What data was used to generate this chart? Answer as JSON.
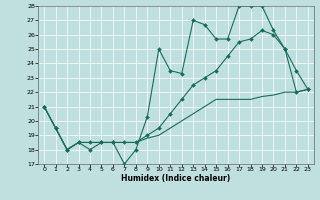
{
  "xlabel": "Humidex (Indice chaleur)",
  "background_color": "#c0e0e0",
  "grid_color": "#ffffff",
  "line_color": "#1a6b5a",
  "ylim": [
    17,
    28
  ],
  "xlim": [
    -0.5,
    23.5
  ],
  "yticks": [
    17,
    18,
    19,
    20,
    21,
    22,
    23,
    24,
    25,
    26,
    27,
    28
  ],
  "xticks": [
    0,
    1,
    2,
    3,
    4,
    5,
    6,
    7,
    8,
    9,
    10,
    11,
    12,
    13,
    14,
    15,
    16,
    17,
    18,
    19,
    20,
    21,
    22,
    23
  ],
  "line1_x": [
    0,
    1,
    2,
    3,
    4,
    5,
    6,
    7,
    8,
    9,
    10,
    11,
    12,
    13,
    14,
    15,
    16,
    17,
    18,
    19,
    20,
    21,
    22,
    23
  ],
  "line1_y": [
    21.0,
    19.5,
    18.0,
    18.5,
    18.0,
    18.5,
    18.5,
    17.0,
    18.0,
    20.3,
    25.0,
    23.5,
    23.3,
    27.0,
    26.7,
    25.7,
    25.7,
    28.0,
    28.0,
    28.0,
    26.3,
    25.0,
    23.5,
    22.2
  ],
  "line2_x": [
    0,
    1,
    2,
    3,
    4,
    5,
    6,
    7,
    8,
    9,
    10,
    11,
    12,
    13,
    14,
    15,
    16,
    17,
    18,
    19,
    20,
    21,
    22,
    23
  ],
  "line2_y": [
    21.0,
    19.5,
    18.0,
    18.5,
    18.5,
    18.5,
    18.5,
    18.5,
    18.5,
    19.0,
    19.5,
    20.5,
    21.5,
    22.5,
    23.0,
    23.5,
    24.5,
    25.5,
    25.7,
    26.3,
    26.0,
    25.0,
    22.0,
    22.2
  ],
  "line3_x": [
    0,
    1,
    2,
    3,
    4,
    5,
    6,
    7,
    8,
    9,
    10,
    11,
    12,
    13,
    14,
    15,
    16,
    17,
    18,
    19,
    20,
    21,
    22,
    23
  ],
  "line3_y": [
    21.0,
    19.5,
    18.0,
    18.5,
    18.5,
    18.5,
    18.5,
    18.5,
    18.5,
    18.8,
    19.0,
    19.5,
    20.0,
    20.5,
    21.0,
    21.5,
    21.5,
    21.5,
    21.5,
    21.7,
    21.8,
    22.0,
    22.0,
    22.2
  ]
}
